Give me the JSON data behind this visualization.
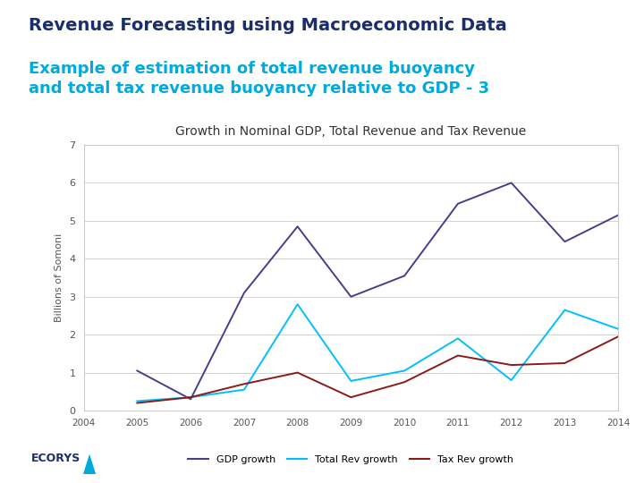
{
  "title": "Revenue Forecasting using Macroeconomic Data",
  "subtitle": "Example of estimation of total revenue buoyancy\nand total tax revenue buoyancy relative to GDP - 3",
  "chart_title": "Growth in Nominal GDP, Total Revenue and Tax Revenue",
  "ylabel": "Billions of Somoni",
  "years": [
    2004,
    2005,
    2006,
    2007,
    2008,
    2009,
    2010,
    2011,
    2012,
    2013,
    2014
  ],
  "gdp_growth": [
    null,
    1.05,
    0.3,
    3.1,
    4.85,
    3.0,
    3.55,
    5.45,
    6.0,
    4.45,
    5.15
  ],
  "total_rev_growth": [
    null,
    0.25,
    0.35,
    0.55,
    2.8,
    0.78,
    1.05,
    1.9,
    0.8,
    2.65,
    2.15
  ],
  "tax_rev_growth": [
    null,
    0.2,
    0.35,
    0.7,
    1.0,
    0.35,
    0.75,
    1.45,
    1.2,
    1.25,
    1.95
  ],
  "gdp_color": "#483D8B",
  "total_rev_color": "#00BFFF",
  "tax_rev_color": "#8B1A1A",
  "ylim": [
    0,
    7
  ],
  "yticks": [
    0,
    1,
    2,
    3,
    4,
    5,
    6,
    7
  ],
  "bg_color": "#FFFFFF",
  "chart_bg": "#FFFFFF",
  "title_fontsize": 14,
  "subtitle_fontsize": 13,
  "chart_title_fontsize": 10,
  "legend_labels": [
    "GDP growth",
    "Total Rev growth",
    "Tax Rev growth"
  ],
  "ecorys_color": "#1a3a6e",
  "triangle_color": "#00AADD"
}
